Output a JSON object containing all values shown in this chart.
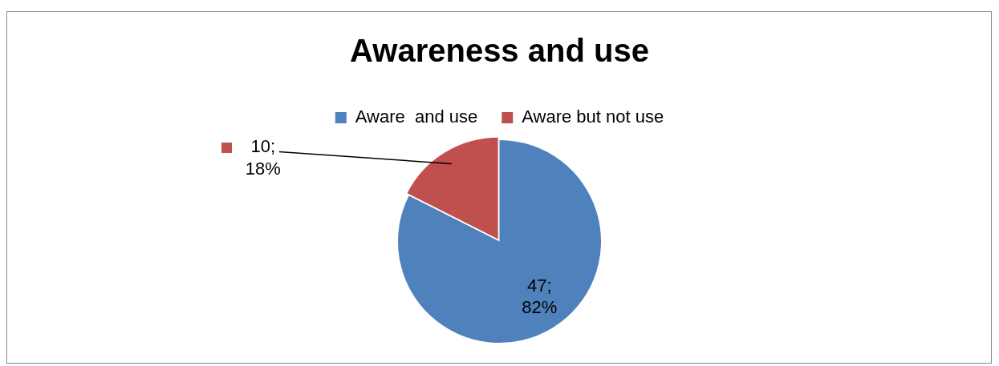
{
  "chart_data": {
    "type": "pie",
    "title": "Awareness and use",
    "categories": [
      "Aware  and use",
      "Aware but not use"
    ],
    "values": [
      47,
      10
    ],
    "colors": [
      "#4f81bd",
      "#c0504d"
    ],
    "value_labels": [
      "47; 82%",
      "10; 18%"
    ],
    "legend": "top"
  }
}
